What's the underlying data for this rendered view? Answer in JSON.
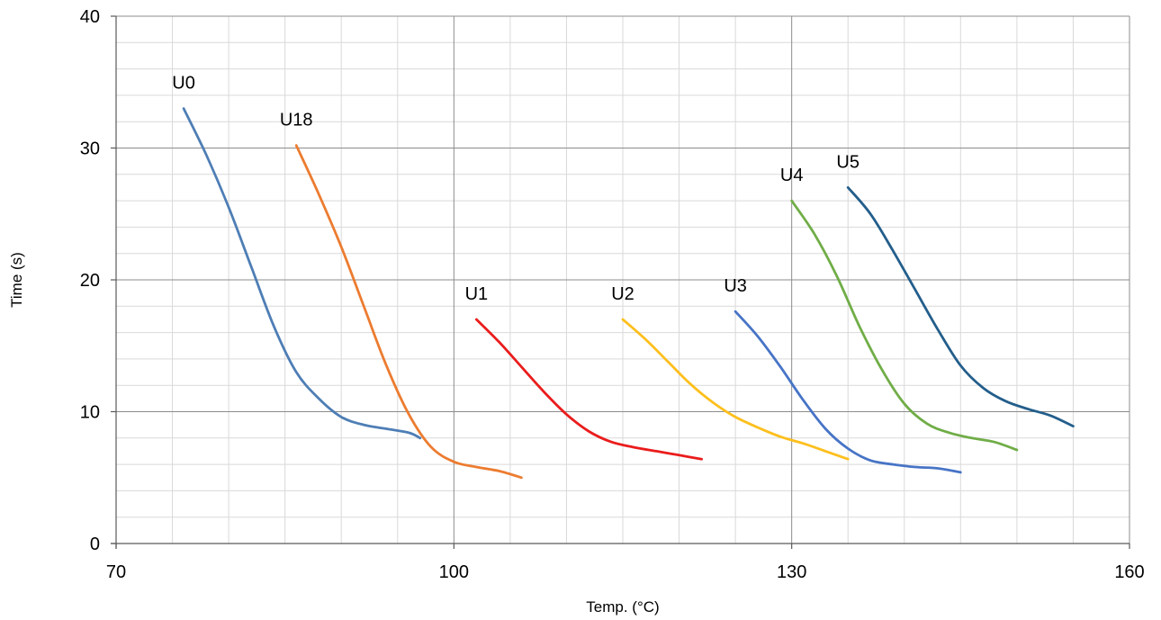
{
  "chart_data": {
    "type": "line",
    "title": "",
    "xlabel": "Temp. (°C)",
    "ylabel": "Time (s)",
    "xlim": [
      70,
      160
    ],
    "ylim": [
      0,
      40
    ],
    "x_major_ticks": [
      70,
      100,
      130,
      160
    ],
    "y_major_ticks": [
      0,
      10,
      20,
      30,
      40
    ],
    "x_minor_step": 5,
    "y_minor_step": 2,
    "grid": true,
    "legend": "none",
    "series": [
      {
        "name": "U0",
        "color": "#4e7eb5",
        "x": [
          76,
          78,
          80,
          82,
          84,
          86,
          88,
          90,
          92,
          94,
          96,
          97
        ],
        "y": [
          33,
          29.5,
          25.5,
          21,
          16.5,
          13,
          11,
          9.6,
          9.0,
          8.7,
          8.4,
          8.0
        ]
      },
      {
        "name": "U18",
        "color": "#ec7c30",
        "x": [
          86,
          88,
          90,
          92,
          94,
          96,
          98,
          100,
          102,
          104,
          106
        ],
        "y": [
          30.2,
          26.5,
          22.5,
          18,
          13.5,
          9.8,
          7.3,
          6.2,
          5.8,
          5.5,
          5.0
        ]
      },
      {
        "name": "U1",
        "color": "#ea1c1c",
        "x": [
          102,
          104,
          106,
          108,
          110,
          112,
          114,
          116,
          118,
          120,
          122
        ],
        "y": [
          17,
          15.3,
          13.4,
          11.5,
          9.8,
          8.5,
          7.7,
          7.3,
          7.0,
          6.7,
          6.4
        ]
      },
      {
        "name": "U2",
        "color": "#fdbf1d",
        "x": [
          115,
          117,
          119,
          121,
          123,
          125,
          127,
          129,
          131,
          133,
          135
        ],
        "y": [
          17,
          15.5,
          13.8,
          12.1,
          10.7,
          9.6,
          8.8,
          8.1,
          7.6,
          7.0,
          6.4
        ]
      },
      {
        "name": "U3",
        "color": "#4774c6",
        "x": [
          125,
          127,
          129,
          131,
          133,
          135,
          137,
          139,
          141,
          143,
          145
        ],
        "y": [
          17.6,
          15.7,
          13.4,
          10.9,
          8.7,
          7.2,
          6.3,
          6.0,
          5.8,
          5.7,
          5.4
        ]
      },
      {
        "name": "U4",
        "color": "#70ad47",
        "x": [
          130,
          132,
          134,
          136,
          138,
          140,
          142,
          144,
          146,
          148,
          150
        ],
        "y": [
          26,
          23.5,
          20.3,
          16.5,
          13.2,
          10.6,
          9.1,
          8.4,
          8.0,
          7.7,
          7.1
        ]
      },
      {
        "name": "U5",
        "color": "#235e8b",
        "x": [
          135,
          137,
          139,
          141,
          143,
          145,
          147,
          149,
          151,
          153,
          155
        ],
        "y": [
          27,
          25,
          22.2,
          19.2,
          16.2,
          13.5,
          11.8,
          10.8,
          10.2,
          9.7,
          8.9
        ]
      }
    ]
  }
}
